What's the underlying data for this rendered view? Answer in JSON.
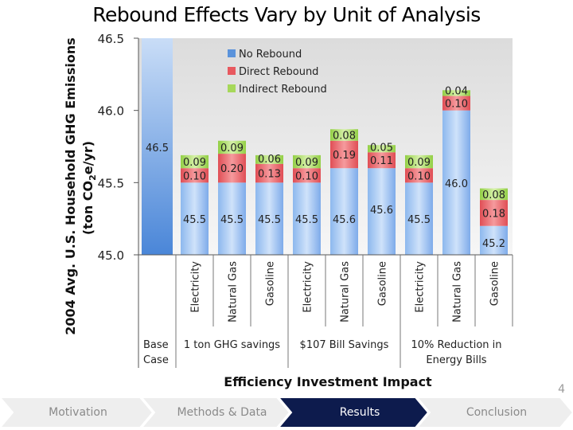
{
  "slide": {
    "title": "Rebound Effects Vary by Unit of Analysis",
    "page_number": "4"
  },
  "nav": {
    "items": [
      {
        "label": "Motivation",
        "active": false
      },
      {
        "label": "Methods & Data",
        "active": false
      },
      {
        "label": "Results",
        "active": true
      },
      {
        "label": "Conclusion",
        "active": false
      }
    ]
  },
  "colors": {
    "no_rebound": "#5b93db",
    "direct_rebound": "#e8595f",
    "indirect_rebound": "#a6d85a",
    "nav_active": "#0d1b4d",
    "nav_inactive": "#eeeeee"
  },
  "chart_data": {
    "type": "bar",
    "stacked": true,
    "title": "",
    "ylabel_line1": "2004 Avg. U.S. Household GHG Emissions",
    "ylabel_line2_pre": "(ton CO",
    "ylabel_line2_sub": "2",
    "ylabel_line2_post": "e/yr)",
    "xlabel": "Efficiency Investment Impact",
    "ylim": [
      45.0,
      46.5
    ],
    "yticks": [
      "45.0",
      "45.5",
      "46.0",
      "46.5"
    ],
    "legend_position": "top-center",
    "series_names": [
      "No Rebound",
      "Direct Rebound",
      "Indirect Rebound"
    ],
    "categories": [
      "",
      "Electricity",
      "Natural Gas",
      "Gasoline",
      "Electricity",
      "Natural Gas",
      "Gasoline",
      "Electricity",
      "Natural Gas",
      "Gasoline"
    ],
    "groups": [
      {
        "label_lines": [
          "Base",
          "Case"
        ],
        "start": 0,
        "end": 0
      },
      {
        "label_lines": [
          "1 ton GHG savings"
        ],
        "start": 1,
        "end": 3
      },
      {
        "label_lines": [
          "$107 Bill Savings"
        ],
        "start": 4,
        "end": 6
      },
      {
        "label_lines": [
          "10% Reduction in",
          "Energy Bills"
        ],
        "start": 7,
        "end": 9
      }
    ],
    "bars": [
      {
        "base": 46.5,
        "direct": 0,
        "indirect": 0,
        "base_label": "46.5",
        "direct_label": "",
        "indirect_label": ""
      },
      {
        "base": 45.5,
        "direct": 0.1,
        "indirect": 0.09,
        "base_label": "45.5",
        "direct_label": "0.10",
        "indirect_label": "0.09"
      },
      {
        "base": 45.5,
        "direct": 0.2,
        "indirect": 0.09,
        "base_label": "45.5",
        "direct_label": "0.20",
        "indirect_label": "0.09"
      },
      {
        "base": 45.5,
        "direct": 0.13,
        "indirect": 0.06,
        "base_label": "45.5",
        "direct_label": "0.13",
        "indirect_label": "0.06"
      },
      {
        "base": 45.5,
        "direct": 0.1,
        "indirect": 0.09,
        "base_label": "45.5",
        "direct_label": "0.10",
        "indirect_label": "0.09"
      },
      {
        "base": 45.6,
        "direct": 0.19,
        "indirect": 0.08,
        "base_label": "45.6",
        "direct_label": "0.19",
        "indirect_label": "0.08"
      },
      {
        "base": 45.6,
        "direct": 0.11,
        "indirect": 0.05,
        "base_label": "45.6",
        "direct_label": "0.11",
        "indirect_label": "0.05"
      },
      {
        "base": 45.5,
        "direct": 0.1,
        "indirect": 0.09,
        "base_label": "45.5",
        "direct_label": "0.10",
        "indirect_label": "0.09"
      },
      {
        "base": 46.0,
        "direct": 0.1,
        "indirect": 0.04,
        "base_label": "46.0",
        "direct_label": "0.10",
        "indirect_label": "0.04"
      },
      {
        "base": 45.2,
        "direct": 0.18,
        "indirect": 0.08,
        "base_label": "45.2",
        "direct_label": "0.18",
        "indirect_label": "0.08"
      }
    ]
  }
}
